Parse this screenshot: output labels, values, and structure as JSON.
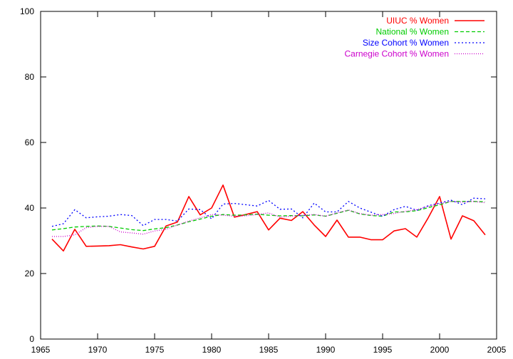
{
  "chart_data": {
    "type": "line",
    "title": "",
    "xlabel": "",
    "ylabel": "",
    "xlim": [
      1965,
      2005
    ],
    "ylim": [
      0,
      100
    ],
    "xticks": [
      1965,
      1970,
      1975,
      1980,
      1985,
      1990,
      1995,
      2000,
      2005
    ],
    "yticks": [
      0,
      20,
      40,
      60,
      80,
      100
    ],
    "grid": false,
    "legend_position": "top-right",
    "x": [
      1966,
      1967,
      1968,
      1969,
      1970,
      1971,
      1972,
      1973,
      1974,
      1975,
      1976,
      1977,
      1978,
      1979,
      1980,
      1981,
      1982,
      1983,
      1984,
      1985,
      1986,
      1987,
      1988,
      1989,
      1990,
      1991,
      1992,
      1993,
      1994,
      1995,
      1996,
      1997,
      1998,
      1999,
      2000,
      2001,
      2002,
      2003,
      2004
    ],
    "series": [
      {
        "name": "UIUC % Women",
        "color": "#ff0000",
        "dash": "solid",
        "values": [
          30.5,
          26.9,
          33.5,
          28.3,
          28.4,
          28.5,
          28.8,
          28.1,
          27.5,
          28.3,
          34.5,
          35.7,
          43.5,
          37.9,
          40.0,
          47.0,
          37.2,
          38.0,
          38.9,
          33.3,
          36.9,
          36.2,
          38.9,
          34.8,
          31.3,
          36.3,
          31.1,
          31.1,
          30.3,
          30.3,
          33.0,
          33.7,
          31.1,
          37.0,
          43.5,
          30.5,
          37.6,
          36.1,
          31.8
        ]
      },
      {
        "name": "National % Women",
        "color": "#00cc00",
        "dash": "dashed",
        "values": [
          33.3,
          33.7,
          34.2,
          34.4,
          34.5,
          34.4,
          33.9,
          33.4,
          33.1,
          33.6,
          34.0,
          34.8,
          35.8,
          36.6,
          37.5,
          38.0,
          37.8,
          37.9,
          38.1,
          37.8,
          37.6,
          37.7,
          37.6,
          37.9,
          37.5,
          38.4,
          39.3,
          38.2,
          37.7,
          37.5,
          38.8,
          38.8,
          39.2,
          40.1,
          41.0,
          42.0,
          42.0,
          42.0,
          41.9
        ]
      },
      {
        "name": "Size Cohort % Women",
        "color": "#0000ff",
        "dash": "dotted",
        "values": [
          34.4,
          35.2,
          39.5,
          37.0,
          37.3,
          37.5,
          38.0,
          37.7,
          34.6,
          36.5,
          36.5,
          36.0,
          39.7,
          39.5,
          36.7,
          41.2,
          41.4,
          41.0,
          40.6,
          42.3,
          39.6,
          39.7,
          37.0,
          41.5,
          38.8,
          38.8,
          42.0,
          40.0,
          38.7,
          37.5,
          39.5,
          40.5,
          39.3,
          40.7,
          41.5,
          42.4,
          41.0,
          43.0,
          42.8
        ]
      },
      {
        "name": "Carnegie Cohort % Women",
        "color": "#cc00cc",
        "dash": "densedot",
        "values": [
          31.3,
          31.3,
          31.8,
          34.0,
          34.4,
          34.4,
          32.7,
          32.4,
          32.0,
          33.0,
          33.5,
          34.8,
          36.0,
          37.0,
          38.0,
          37.8,
          37.5,
          37.6,
          38.0,
          38.5,
          37.2,
          37.5,
          37.8,
          38.0,
          37.5,
          38.5,
          39.4,
          38.3,
          37.8,
          38.0,
          38.3,
          39.0,
          39.5,
          40.5,
          41.3,
          42.0,
          41.8,
          42.0,
          41.6
        ]
      }
    ]
  }
}
